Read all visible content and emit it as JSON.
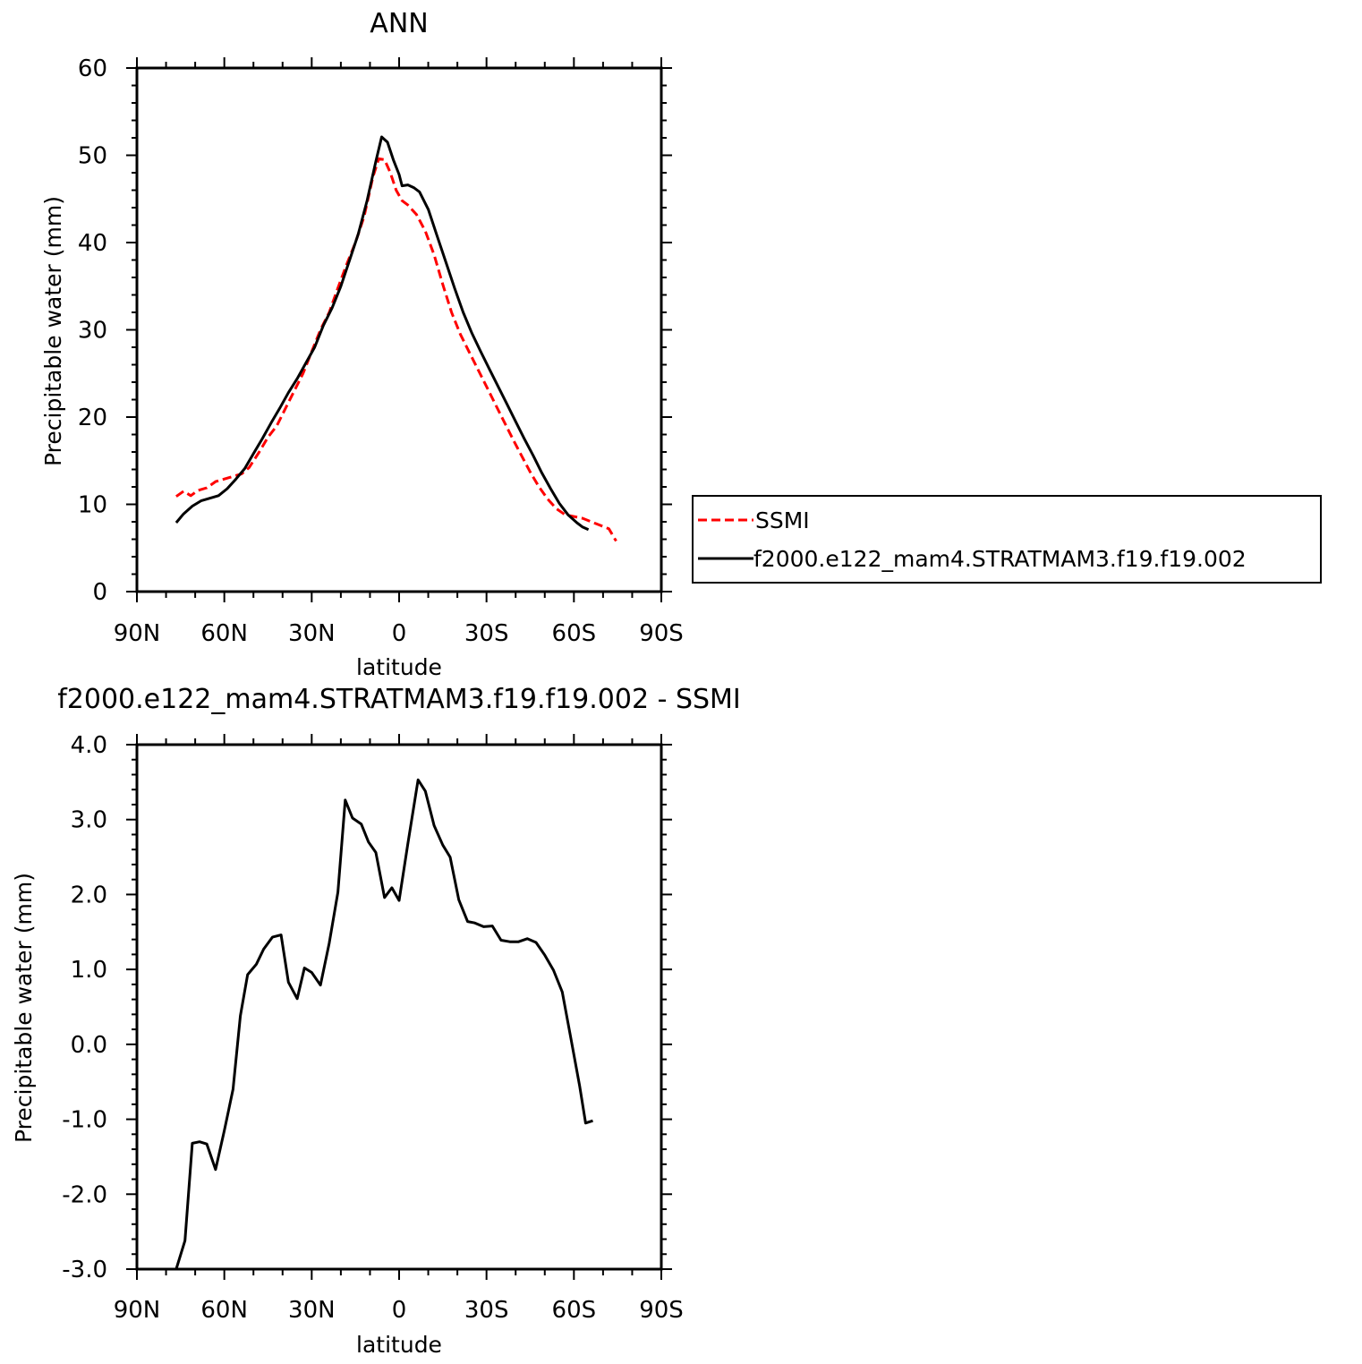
{
  "chart_data": [
    {
      "type": "line",
      "title": "ANN",
      "xlabel": "latitude",
      "ylabel": "Precipitable water (mm)",
      "xlim": [
        90,
        -90
      ],
      "ylim": [
        0,
        60
      ],
      "x_tick_values": [
        90,
        60,
        30,
        0,
        -30,
        -60,
        -90
      ],
      "x_tick_labels": [
        "90N",
        "60N",
        "30N",
        "0",
        "30S",
        "60S",
        "90S"
      ],
      "y_tick_values": [
        0,
        10,
        20,
        30,
        40,
        50,
        60
      ],
      "y_tick_labels": [
        "0",
        "10",
        "20",
        "30",
        "40",
        "50",
        "60"
      ],
      "legend": "right",
      "series": [
        {
          "name": "SSMI",
          "color": "#ff0000",
          "dash": true,
          "points": [
            [
              76.5,
              10.9
            ],
            [
              74,
              11.5
            ],
            [
              71.5,
              11.0
            ],
            [
              69,
              11.6
            ],
            [
              66,
              11.9
            ],
            [
              63,
              12.6
            ],
            [
              60,
              12.9
            ],
            [
              57,
              13.2
            ],
            [
              54,
              13.5
            ],
            [
              51.5,
              14.2
            ],
            [
              48,
              16.0
            ],
            [
              45,
              17.7
            ],
            [
              42,
              19.0
            ],
            [
              39,
              21.0
            ],
            [
              36,
              23.0
            ],
            [
              33,
              25.0
            ],
            [
              30,
              27.5
            ],
            [
              27,
              30.0
            ],
            [
              24,
              32.0
            ],
            [
              21,
              34.8
            ],
            [
              18,
              37.5
            ],
            [
              15,
              40.0
            ],
            [
              12,
              43.0
            ],
            [
              9,
              47.5
            ],
            [
              7,
              49.6
            ],
            [
              5,
              49.5
            ],
            [
              3,
              48.0
            ],
            [
              1,
              46.0
            ],
            [
              -1,
              44.8
            ],
            [
              -3,
              44.3
            ],
            [
              -6,
              43.2
            ],
            [
              -9,
              41.3
            ],
            [
              -12,
              38.6
            ],
            [
              -15,
              35.2
            ],
            [
              -18,
              32.0
            ],
            [
              -21,
              29.5
            ],
            [
              -24,
              27.5
            ],
            [
              -27,
              25.5
            ],
            [
              -30,
              23.5
            ],
            [
              -33,
              21.5
            ],
            [
              -36,
              19.5
            ],
            [
              -39,
              17.5
            ],
            [
              -42,
              15.6
            ],
            [
              -45,
              13.7
            ],
            [
              -48,
              12.0
            ],
            [
              -51,
              10.6
            ],
            [
              -54,
              9.5
            ],
            [
              -57,
              8.8
            ],
            [
              -60,
              8.6
            ],
            [
              -63,
              8.4
            ],
            [
              -66,
              8.0
            ],
            [
              -69,
              7.6
            ],
            [
              -72,
              7.2
            ],
            [
              -74.5,
              5.8
            ]
          ]
        },
        {
          "name": "f2000.e122_mam4.STRATMAM3.f19.f19.002",
          "color": "#000000",
          "dash": false,
          "points": [
            [
              76.5,
              7.9
            ],
            [
              74,
              8.9
            ],
            [
              71,
              9.8
            ],
            [
              68,
              10.4
            ],
            [
              65,
              10.7
            ],
            [
              62,
              11.0
            ],
            [
              59,
              11.8
            ],
            [
              56,
              12.9
            ],
            [
              53,
              14.1
            ],
            [
              50,
              15.8
            ],
            [
              47,
              17.5
            ],
            [
              44,
              19.3
            ],
            [
              41,
              21.0
            ],
            [
              38,
              22.8
            ],
            [
              35,
              24.4
            ],
            [
              32,
              26.2
            ],
            [
              29,
              28.0
            ],
            [
              26,
              30.5
            ],
            [
              23,
              32.5
            ],
            [
              20,
              35.0
            ],
            [
              17,
              38.0
            ],
            [
              14,
              41.0
            ],
            [
              11,
              44.8
            ],
            [
              8,
              49.3
            ],
            [
              6,
              52.1
            ],
            [
              4,
              51.5
            ],
            [
              2,
              49.5
            ],
            [
              0,
              47.8
            ],
            [
              -1,
              46.5
            ],
            [
              -3,
              46.6
            ],
            [
              -5,
              46.3
            ],
            [
              -7,
              45.8
            ],
            [
              -10,
              43.8
            ],
            [
              -13,
              40.8
            ],
            [
              -16,
              37.8
            ],
            [
              -19,
              34.8
            ],
            [
              -22,
              32.0
            ],
            [
              -25,
              29.6
            ],
            [
              -28,
              27.5
            ],
            [
              -31,
              25.5
            ],
            [
              -34,
              23.5
            ],
            [
              -37,
              21.5
            ],
            [
              -40,
              19.5
            ],
            [
              -43,
              17.5
            ],
            [
              -46,
              15.6
            ],
            [
              -49,
              13.6
            ],
            [
              -52,
              11.8
            ],
            [
              -55,
              10.1
            ],
            [
              -58,
              8.8
            ],
            [
              -61,
              7.9
            ],
            [
              -63,
              7.4
            ],
            [
              -65,
              7.1
            ]
          ]
        }
      ]
    },
    {
      "type": "line",
      "title": "f2000.e122_mam4.STRATMAM3.f19.f19.002 - SSMI",
      "xlabel": "latitude",
      "ylabel": "Precipitable water (mm)",
      "xlim": [
        90,
        -90
      ],
      "ylim": [
        -3,
        4
      ],
      "x_tick_values": [
        90,
        60,
        30,
        0,
        -30,
        -60,
        -90
      ],
      "x_tick_labels": [
        "90N",
        "60N",
        "30N",
        "0",
        "30S",
        "60S",
        "90S"
      ],
      "y_tick_values": [
        -3,
        -2,
        -1,
        0,
        1,
        2,
        3,
        4
      ],
      "y_tick_labels": [
        "-3.0",
        "-2.0",
        "-1.0",
        "0.0",
        "1.0",
        "2.0",
        "3.0",
        "4.0"
      ],
      "series": [
        {
          "color": "#000000",
          "dash": false,
          "points": [
            [
              76.5,
              -3.0
            ],
            [
              73.5,
              -2.62
            ],
            [
              71,
              -1.32
            ],
            [
              68.5,
              -1.3
            ],
            [
              66,
              -1.33
            ],
            [
              63,
              -1.67
            ],
            [
              60,
              -1.15
            ],
            [
              57,
              -0.6
            ],
            [
              54.5,
              0.38
            ],
            [
              52,
              0.93
            ],
            [
              49,
              1.07
            ],
            [
              46.5,
              1.27
            ],
            [
              43.5,
              1.43
            ],
            [
              40.5,
              1.46
            ],
            [
              38,
              0.83
            ],
            [
              35,
              0.61
            ],
            [
              32.5,
              1.02
            ],
            [
              30,
              0.96
            ],
            [
              27,
              0.79
            ],
            [
              24,
              1.35
            ],
            [
              21,
              2.03
            ],
            [
              18.5,
              3.26
            ],
            [
              16,
              3.02
            ],
            [
              13,
              2.94
            ],
            [
              10.5,
              2.7
            ],
            [
              8,
              2.56
            ],
            [
              5,
              1.96
            ],
            [
              2.5,
              2.09
            ],
            [
              0,
              1.92
            ],
            [
              -3,
              2.68
            ],
            [
              -6.5,
              3.53
            ],
            [
              -9,
              3.38
            ],
            [
              -12,
              2.92
            ],
            [
              -15,
              2.66
            ],
            [
              -17.5,
              2.5
            ],
            [
              -20.5,
              1.93
            ],
            [
              -23.5,
              1.64
            ],
            [
              -26,
              1.62
            ],
            [
              -29,
              1.57
            ],
            [
              -32,
              1.58
            ],
            [
              -35,
              1.39
            ],
            [
              -38,
              1.37
            ],
            [
              -41,
              1.37
            ],
            [
              -44,
              1.41
            ],
            [
              -47,
              1.36
            ],
            [
              -50,
              1.19
            ],
            [
              -53,
              0.99
            ],
            [
              -56,
              0.7
            ],
            [
              -59,
              0.07
            ],
            [
              -62,
              -0.56
            ],
            [
              -64,
              -1.05
            ],
            [
              -66.5,
              -1.02
            ]
          ]
        }
      ]
    }
  ]
}
